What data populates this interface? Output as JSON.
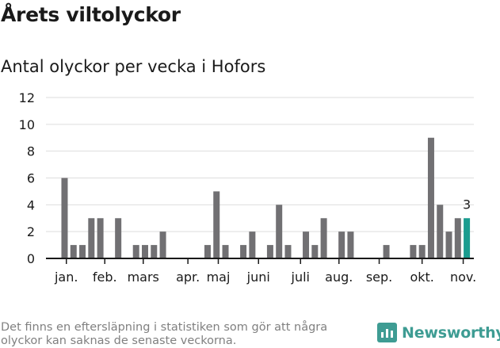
{
  "header": {
    "title": "Årets viltolyckor",
    "subtitle": "Antal olyckor per vecka i Hofors"
  },
  "footer": {
    "note": "Det finns en eftersläpning i statistiken som gör att några olyckor kan saknas de senaste veckorna.",
    "brand": "Newsworthy"
  },
  "colors": {
    "bar": "#717073",
    "highlight": "#1a9c8f",
    "grid": "#dddddd",
    "brand": "#3e9c93"
  },
  "chart_data": {
    "type": "bar",
    "title": "Antal olyckor per vecka i Hofors",
    "xlabel": "",
    "ylabel": "",
    "ylim": [
      0,
      12
    ],
    "yticks": [
      0,
      2,
      4,
      6,
      8,
      10,
      12
    ],
    "grid": true,
    "x": [
      2,
      3,
      4,
      5,
      6,
      8,
      10,
      11,
      12,
      13,
      14,
      18,
      19,
      20,
      22,
      23,
      25,
      26,
      27,
      29,
      30,
      31,
      33,
      34,
      35,
      36,
      38,
      41,
      42,
      43,
      44,
      45,
      46
    ],
    "values": [
      6,
      1,
      1,
      3,
      3,
      3,
      1,
      1,
      1,
      2,
      0,
      1,
      5,
      1,
      1,
      2,
      1,
      4,
      1,
      2,
      1,
      3,
      2,
      2,
      0,
      0,
      1,
      1,
      1,
      9,
      4,
      2,
      3
    ],
    "highlight": {
      "x": 47,
      "value": 3,
      "label": "3"
    },
    "month_ticks": [
      {
        "label": "jan.",
        "x": 2.2
      },
      {
        "label": "feb.",
        "x": 6.5
      },
      {
        "label": "mars",
        "x": 10.8
      },
      {
        "label": "apr.",
        "x": 15.8
      },
      {
        "label": "maj",
        "x": 19.2
      },
      {
        "label": "juni",
        "x": 23.7
      },
      {
        "label": "juli",
        "x": 28.4
      },
      {
        "label": "aug.",
        "x": 32.7
      },
      {
        "label": "sep.",
        "x": 37.2
      },
      {
        "label": "okt.",
        "x": 42.0
      },
      {
        "label": "nov.",
        "x": 46.6
      }
    ]
  }
}
